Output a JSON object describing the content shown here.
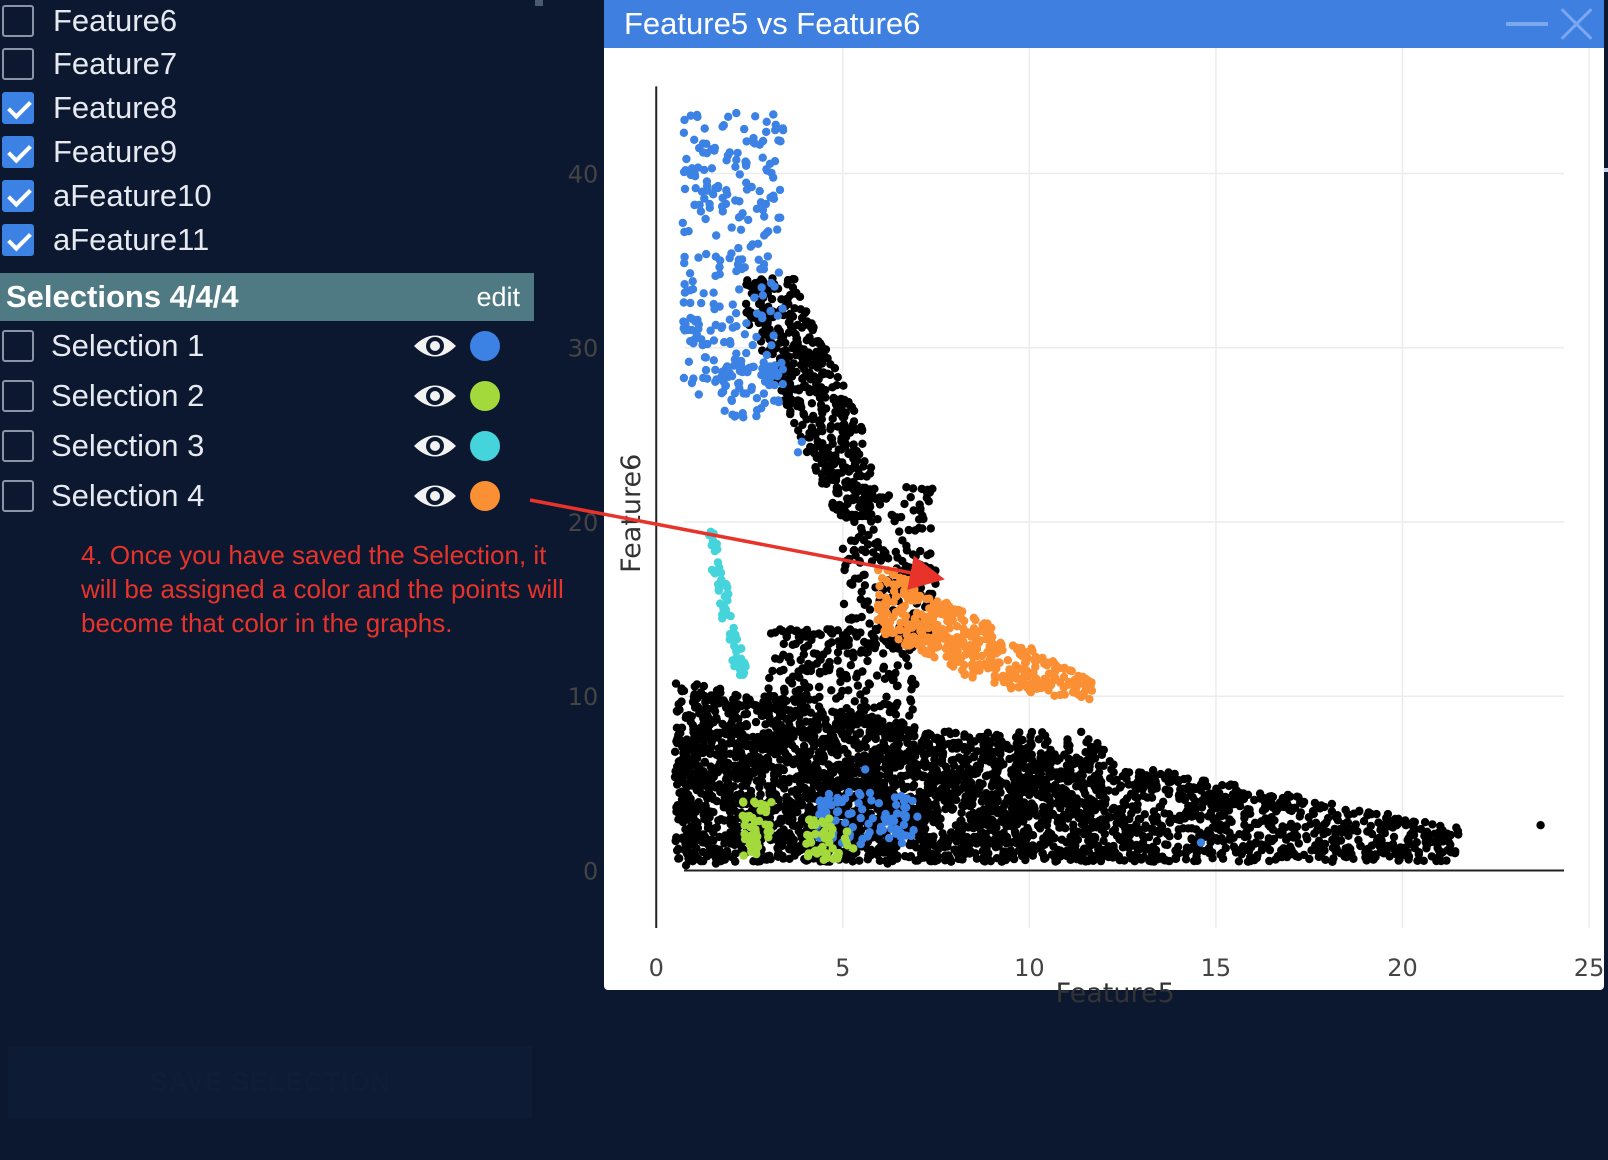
{
  "features": [
    {
      "label": "Feature6",
      "checked": false
    },
    {
      "label": "Feature7",
      "checked": false
    },
    {
      "label": "Feature8",
      "checked": true
    },
    {
      "label": "Feature9",
      "checked": true
    },
    {
      "label": "aFeature10",
      "checked": true
    },
    {
      "label": "aFeature11",
      "checked": true
    }
  ],
  "selections": {
    "title": "Selections 4/4/4",
    "edit_label": "edit",
    "items": [
      {
        "label": "Selection 1",
        "color": "#3b82e4",
        "icon": "eye-icon"
      },
      {
        "label": "Selection 2",
        "color": "#a3d93a",
        "icon": "eye-icon"
      },
      {
        "label": "Selection 3",
        "color": "#45d4dc",
        "icon": "eye-icon"
      },
      {
        "label": "Selection 4",
        "color": "#fb8f33",
        "icon": "eye-icon"
      }
    ]
  },
  "annotation": "4. Once you have saved the Selection, it will be assigned a color and the points will become that color in the graphs.",
  "save_button": "SAVE SELECTION",
  "chart_window": {
    "title": "Feature5 vs Feature6"
  },
  "chart_data": {
    "type": "scatter",
    "title": "",
    "xlabel": "Feature5",
    "ylabel": "Feature6",
    "xlim": [
      -1.4,
      25.4
    ],
    "ylim": [
      -3.3,
      47.2
    ],
    "xticks": [
      0,
      5,
      10,
      15,
      20,
      25
    ],
    "yticks": [
      0,
      10,
      20,
      30,
      40
    ],
    "grid": true,
    "series": [
      {
        "color": "#000000",
        "clusters": [
          {
            "x": [
              0.5,
              21.5
            ],
            "y": [
              0.5,
              11
            ],
            "n": 2600,
            "shape": "tri"
          },
          {
            "x": [
              0.6,
              12
            ],
            "y": [
              0.5,
              8
            ],
            "n": 900,
            "shape": "box"
          },
          {
            "x": [
              3,
              7
            ],
            "y": [
              8,
              14
            ],
            "n": 250,
            "shape": "box"
          },
          {
            "x": [
              2.4,
              5.8
            ],
            "y": [
              20,
              34
            ],
            "n": 450,
            "shape": "arm"
          },
          {
            "x": [
              5,
              7.5
            ],
            "y": [
              13,
              22
            ],
            "n": 220,
            "shape": "box"
          }
        ],
        "points": [
          [
            23.7,
            2.6
          ],
          [
            0.8,
            0.3
          ],
          [
            1.6,
            0.4
          ],
          [
            6.2,
            0.4
          ]
        ]
      },
      {
        "name": "Selection 1",
        "color": "#3b82e4",
        "clusters": [
          {
            "x": [
              0.7,
              3.4
            ],
            "y": [
              27,
              43.5
            ],
            "n": 260,
            "shape": "box"
          },
          {
            "x": [
              1.8,
              3.3
            ],
            "y": [
              26,
              29
            ],
            "n": 50,
            "shape": "box"
          },
          {
            "x": [
              4.3,
              7
            ],
            "y": [
              1.5,
              4.5
            ],
            "n": 90,
            "shape": "box"
          }
        ],
        "points": [
          [
            14.6,
            1.6
          ],
          [
            5.6,
            5.8
          ],
          [
            3.9,
            24.6
          ],
          [
            3.8,
            24
          ]
        ]
      },
      {
        "name": "Selection 2",
        "color": "#a3d93a",
        "clusters": [
          {
            "x": [
              2.3,
              3.1
            ],
            "y": [
              0.8,
              4
            ],
            "n": 45,
            "shape": "box"
          },
          {
            "x": [
              4,
              5.3
            ],
            "y": [
              0.6,
              3
            ],
            "n": 45,
            "shape": "box"
          }
        ],
        "points": []
      },
      {
        "name": "Selection 3",
        "color": "#45d4dc",
        "clusters": [
          {
            "x": [
              1.3,
              2.3
            ],
            "y": [
              11,
              19.6
            ],
            "n": 60,
            "shape": "line"
          }
        ],
        "points": []
      },
      {
        "name": "Selection 4",
        "color": "#fb8f33",
        "clusters": [
          {
            "x": [
              5.9,
              11.7
            ],
            "y": [
              9.5,
              17.8
            ],
            "n": 420,
            "shape": "orange"
          }
        ],
        "points": []
      }
    ]
  }
}
